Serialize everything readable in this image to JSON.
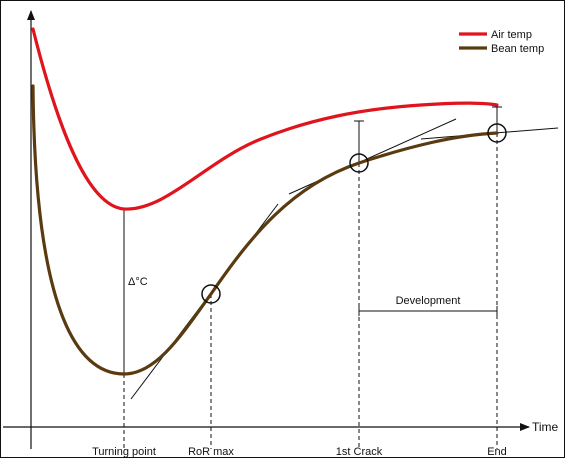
{
  "chart_data": {
    "type": "line",
    "xlabel": "Time",
    "ylabel": "",
    "legend": {
      "placement": "top-right"
    },
    "grid": false,
    "series": [
      {
        "name": "Air temp",
        "color": "#e0141c"
      },
      {
        "name": "Bean temp",
        "color": "#5a3b10"
      }
    ],
    "events": [
      {
        "key": "turning_point",
        "label": "Turning point"
      },
      {
        "key": "ror_max",
        "label": "RoR max"
      },
      {
        "key": "first_crack",
        "label": "1st Crack"
      },
      {
        "key": "end",
        "label": "End"
      }
    ],
    "annotations": {
      "delta": "Δ°C",
      "development": "Development"
    }
  }
}
